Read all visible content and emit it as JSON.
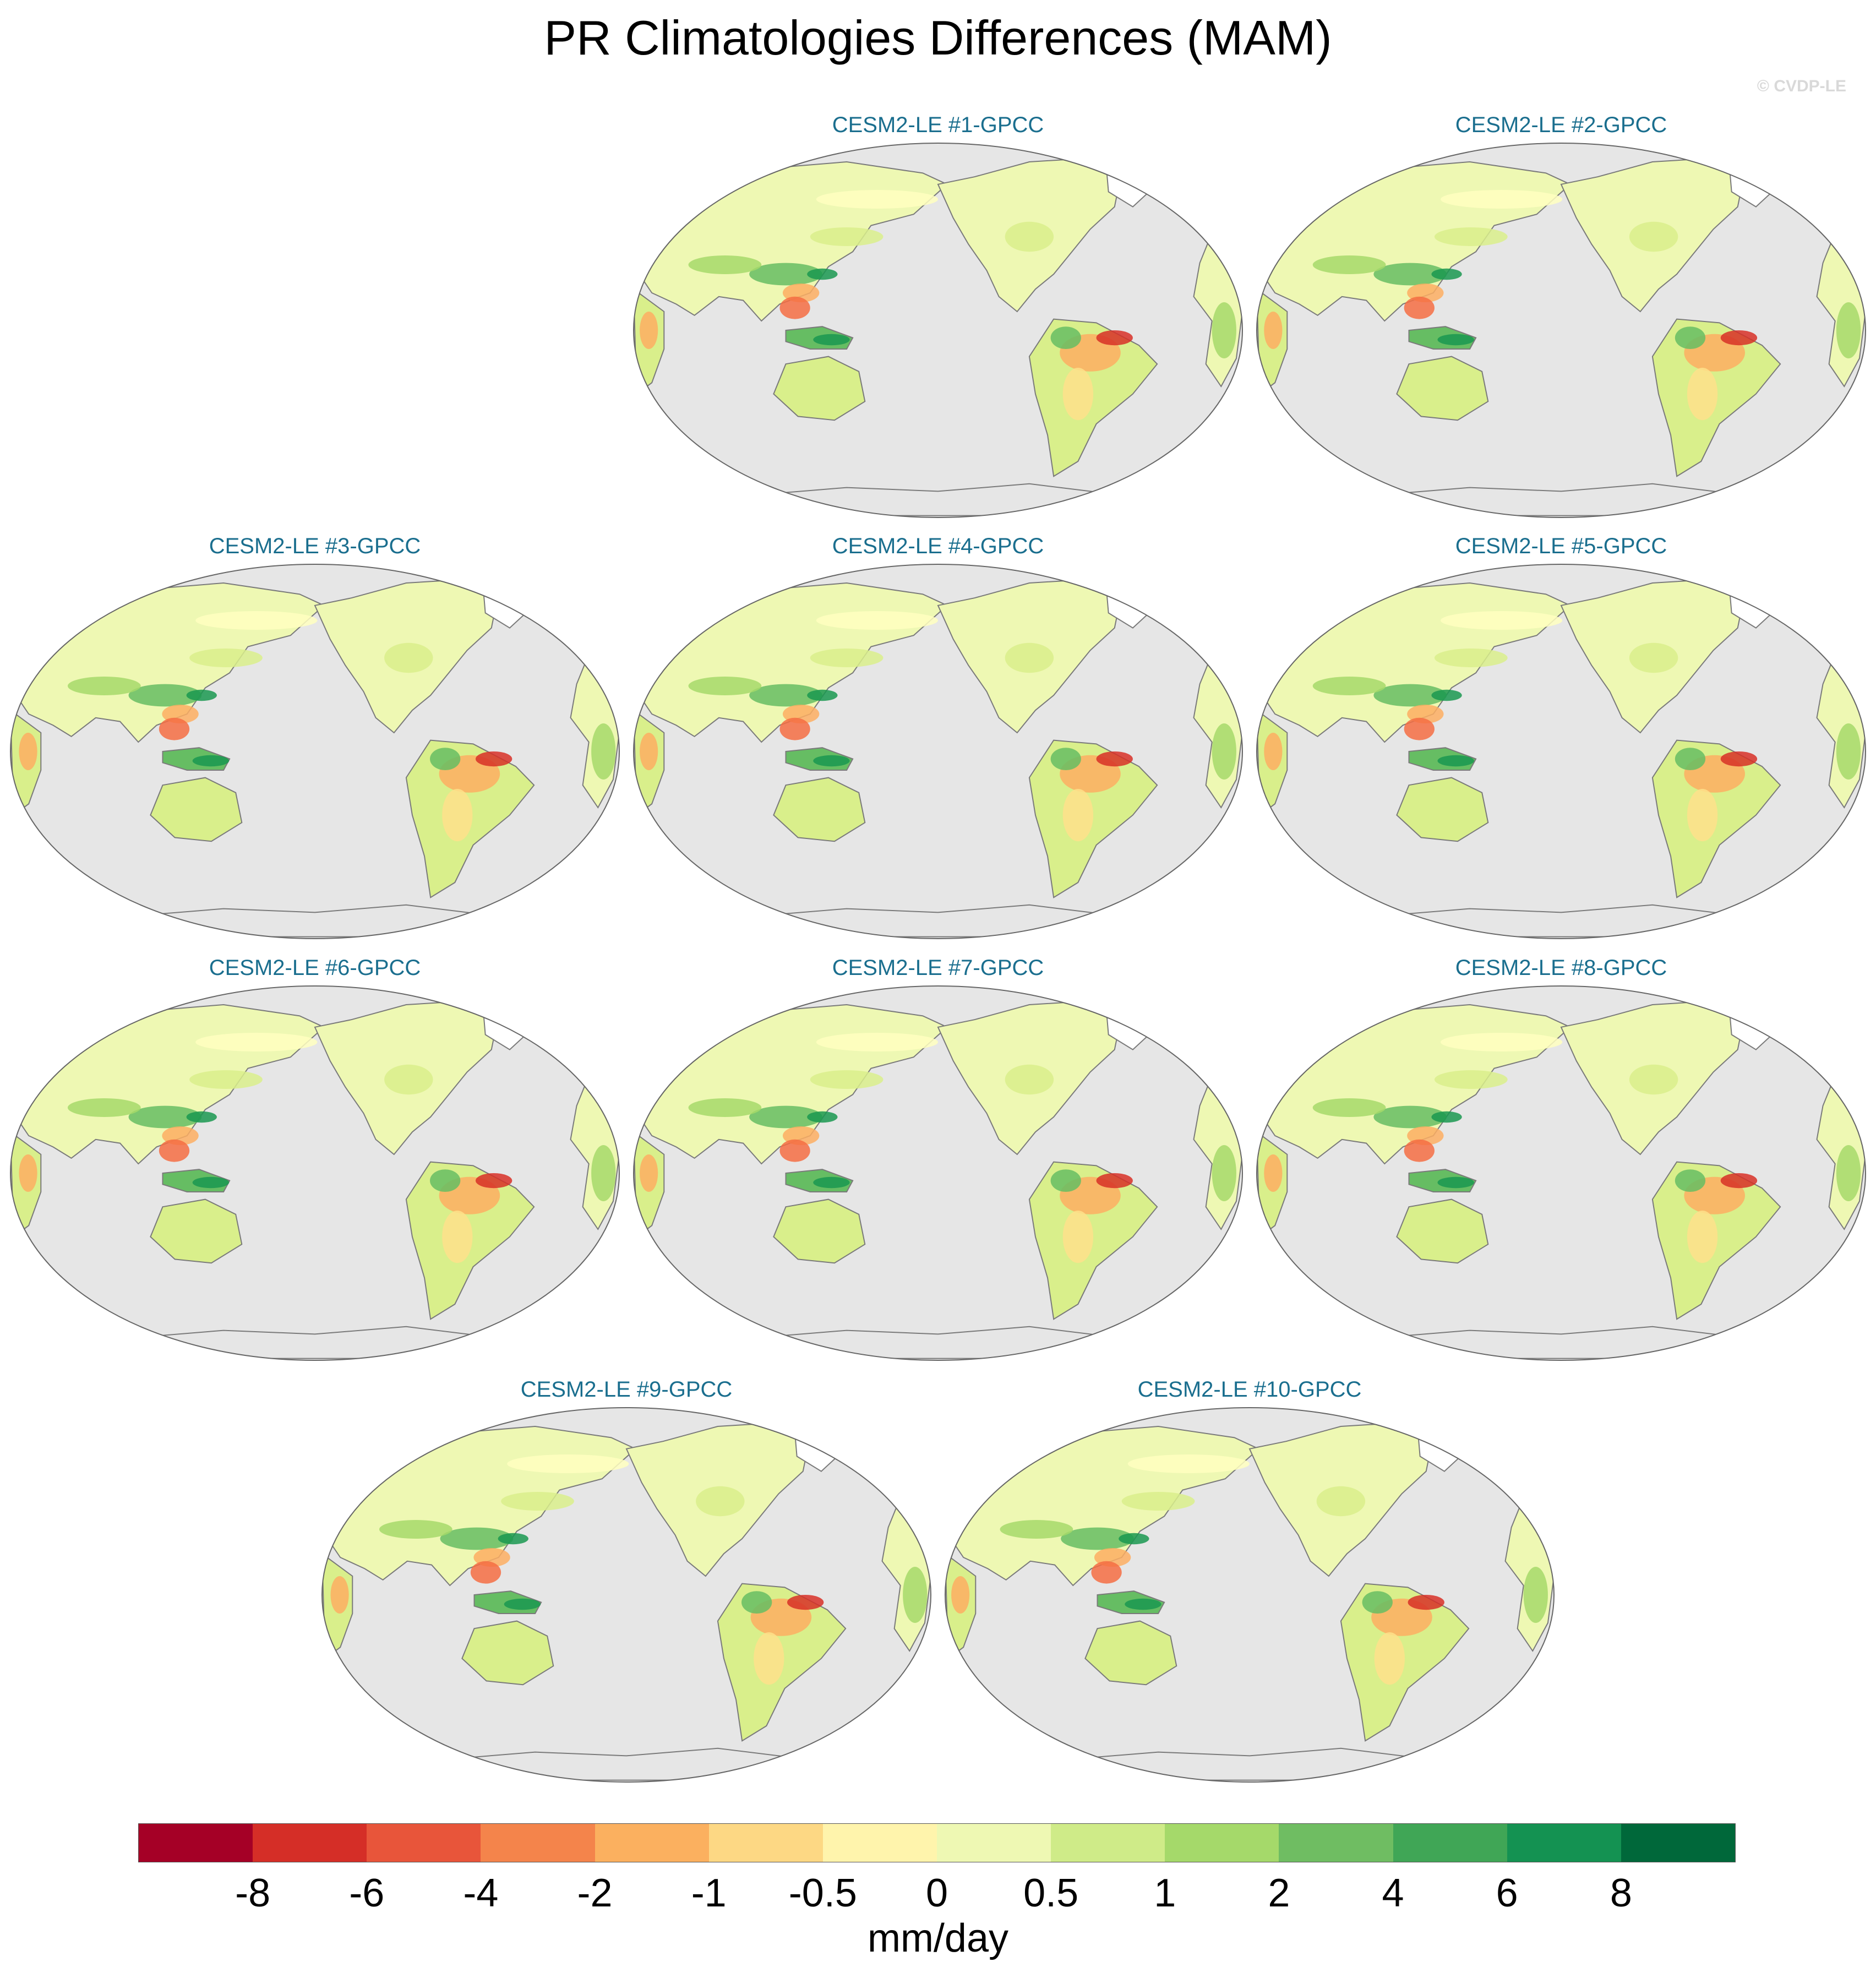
{
  "title": "PR Climatologies Differences (MAM)",
  "copyright": "© CVDP-LE",
  "panels": [
    {
      "title": "CESM2-LE #1-GPCC"
    },
    {
      "title": "CESM2-LE #2-GPCC"
    },
    {
      "title": "CESM2-LE #3-GPCC"
    },
    {
      "title": "CESM2-LE #4-GPCC"
    },
    {
      "title": "CESM2-LE #5-GPCC"
    },
    {
      "title": "CESM2-LE #6-GPCC"
    },
    {
      "title": "CESM2-LE #7-GPCC"
    },
    {
      "title": "CESM2-LE #8-GPCC"
    },
    {
      "title": "CESM2-LE #9-GPCC"
    },
    {
      "title": "CESM2-LE #10-GPCC"
    }
  ],
  "map": {
    "projection": "Robinson, Pacific-centred",
    "ocean_color": "#e6e6e6",
    "coast_color": "#7a7a7a"
  },
  "colorbar": {
    "colors": [
      "#a50026",
      "#d73027",
      "#f46d43",
      "#fdae61",
      "#fee08b",
      "#ffffbf",
      "#d9ef8b",
      "#a6d96a",
      "#66bd63",
      "#1a9850",
      "#006837",
      "#a50026",
      "#d73027",
      "#f46d43"
    ],
    "fill_colors": [
      "#a50026",
      "#d52e27",
      "#e8553a",
      "#f4844b",
      "#fbb05f",
      "#fdd884",
      "#fff4ac",
      "#eef8b3",
      "#cfeb88",
      "#a5d96a",
      "#6fbd62",
      "#40a656",
      "#149252",
      "#00683a"
    ],
    "tick_labels": [
      "-8",
      "-6",
      "-4",
      "-2",
      "-1",
      "-0.5",
      "0",
      "0.5",
      "1",
      "2",
      "4",
      "6",
      "8"
    ],
    "units": "mm/day"
  }
}
